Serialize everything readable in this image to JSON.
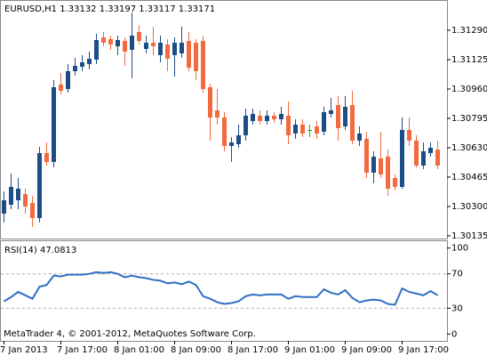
{
  "chart_data": [
    {
      "type": "candlestick",
      "title": "EURUSD,H1  1.33132 1.33197 1.33117 1.33171",
      "categories": [
        "7 Jan 2013",
        null,
        null,
        null,
        null,
        null,
        null,
        null,
        "7 Jan 17:00",
        null,
        null,
        null,
        null,
        null,
        null,
        null,
        "8 Jan 01:00",
        null,
        null,
        null,
        null,
        null,
        null,
        null,
        "8 Jan 09:00",
        null,
        null,
        null,
        null,
        null,
        null,
        null,
        "8 Jan 17:00",
        null,
        null,
        null,
        null,
        null,
        null,
        null,
        "9 Jan 01:00",
        null,
        null,
        null,
        null,
        null,
        null,
        null,
        "9 Jan 09:00",
        null,
        null,
        null,
        null,
        null,
        null,
        null,
        "9 Jan 17:00",
        null,
        null,
        null,
        null,
        null
      ],
      "open": [
        1.3026,
        1.3031,
        1.30335,
        1.3037,
        1.3032,
        1.30235,
        1.306,
        1.3055,
        1.30985,
        1.3096,
        1.3106,
        1.31085,
        1.311,
        1.31125,
        1.3125,
        1.3124,
        1.312,
        1.3123,
        1.3118,
        1.3128,
        1.31185,
        1.3122,
        1.3115,
        1.3121,
        1.3115,
        1.3116,
        1.3123,
        1.3122,
        1.3123,
        1.3097,
        1.3084,
        1.308,
        1.3064,
        1.3065,
        1.307,
        1.3078,
        1.3081,
        1.3078,
        1.3081,
        1.3079,
        1.3081,
        1.3071,
        1.3076,
        1.3073,
        1.3075,
        1.3072,
        1.3082,
        1.3087,
        1.3075,
        1.3087,
        1.3067,
        1.3068,
        1.3049,
        1.3057,
        1.3058,
        1.3046,
        1.3041,
        1.3073,
        1.3067,
        1.3053,
        1.306,
        1.3062
      ],
      "high": [
        1.30385,
        1.30485,
        1.3046,
        1.304,
        1.3036,
        1.30635,
        1.3066,
        1.3101,
        1.3105,
        1.311,
        1.31135,
        1.3115,
        1.3117,
        1.3127,
        1.3128,
        1.3126,
        1.3126,
        1.3125,
        1.3139,
        1.3132,
        1.3126,
        1.3131,
        1.3126,
        1.3124,
        1.3125,
        1.3131,
        1.3128,
        1.3124,
        1.3126,
        1.3099,
        1.3096,
        1.3083,
        1.3069,
        1.3076,
        1.3085,
        1.3085,
        1.3084,
        1.3084,
        1.3083,
        1.3086,
        1.3089,
        1.3079,
        1.3079,
        1.3076,
        1.3078,
        1.3086,
        1.3091,
        1.3092,
        1.3092,
        1.3095,
        1.3075,
        1.3072,
        1.3061,
        1.3072,
        1.3062,
        1.3048,
        1.308,
        1.308,
        1.307,
        1.3066,
        1.3066,
        1.3067
      ],
      "low": [
        1.3021,
        1.30285,
        1.30285,
        1.3026,
        1.30185,
        1.3021,
        1.3053,
        1.3052,
        1.3093,
        1.3094,
        1.31035,
        1.3106,
        1.3107,
        1.311,
        1.312,
        1.3118,
        1.3115,
        1.3109,
        1.3102,
        1.3121,
        1.3116,
        1.3115,
        1.3111,
        1.3106,
        1.3103,
        1.31135,
        1.3106,
        1.3101,
        1.3094,
        1.3067,
        1.3076,
        1.3061,
        1.3055,
        1.3063,
        1.3067,
        1.3076,
        1.3076,
        1.3076,
        1.3077,
        1.3076,
        1.3065,
        1.3068,
        1.3069,
        1.3069,
        1.3068,
        1.307,
        1.308,
        1.3067,
        1.3073,
        1.3065,
        1.3064,
        1.3046,
        1.3043,
        1.3046,
        1.3036,
        1.3039,
        1.304,
        1.3064,
        1.3052,
        1.3051,
        1.3058,
        1.3051
      ],
      "close": [
        1.30335,
        1.3041,
        1.304,
        1.303,
        1.30235,
        1.306,
        1.3055,
        1.3097,
        1.3095,
        1.3106,
        1.3109,
        1.3111,
        1.3113,
        1.31235,
        1.3122,
        1.3121,
        1.31235,
        1.3117,
        1.3126,
        1.3123,
        1.3122,
        1.312,
        1.3122,
        1.3113,
        1.3122,
        1.3122,
        1.3108,
        1.3106,
        1.3096,
        1.308,
        1.308,
        1.3064,
        1.3066,
        1.307,
        1.3081,
        1.3082,
        1.3078,
        1.3081,
        1.3079,
        1.3082,
        1.307,
        1.3076,
        1.3071,
        1.3073,
        1.3071,
        1.3083,
        1.3084,
        1.3074,
        1.3086,
        1.3067,
        1.3071,
        1.3049,
        1.3058,
        1.3048,
        1.304,
        1.3041,
        1.3073,
        1.3067,
        1.3053,
        1.3061,
        1.3063,
        1.3053
      ],
      "up_color": "#1c4d86",
      "down_color": "#f26a3e",
      "doji_color": "#22b022",
      "ylim": [
        1.3012,
        1.3146
      ],
      "yticks": [
        {
          "value": 1.3129,
          "label": "1.31290"
        },
        1.31125,
        {
          "value": 1.3096,
          "label": "1.30960"
        },
        1.30795,
        {
          "value": 1.3063,
          "label": "1.30630"
        },
        1.30465,
        {
          "value": 1.303,
          "label": "1.30300"
        },
        1.30135
      ]
    },
    {
      "type": "line",
      "title": "RSI(14) 47.0813",
      "annotation": "MetaTrader 4, © 2001-2012, MetaQuotes Software Corp.",
      "values": [
        38,
        43,
        49,
        45,
        41,
        55,
        57,
        68,
        67,
        69,
        69,
        69,
        70,
        72,
        71,
        72,
        70,
        66,
        68,
        66,
        65,
        63,
        62,
        59,
        60,
        58,
        61,
        57,
        44,
        41,
        37,
        35,
        36,
        38,
        44,
        46,
        45,
        46,
        46,
        46,
        41,
        44,
        43,
        43,
        43,
        52,
        48,
        46,
        51,
        42,
        37,
        39,
        40,
        39,
        35,
        34,
        53,
        49,
        47,
        45,
        50,
        45
      ],
      "color": "#2f6fc4",
      "levels": [
        70,
        30
      ],
      "ylim": [
        -8,
        108
      ],
      "yticks": [
        100,
        70,
        30,
        0
      ]
    }
  ]
}
